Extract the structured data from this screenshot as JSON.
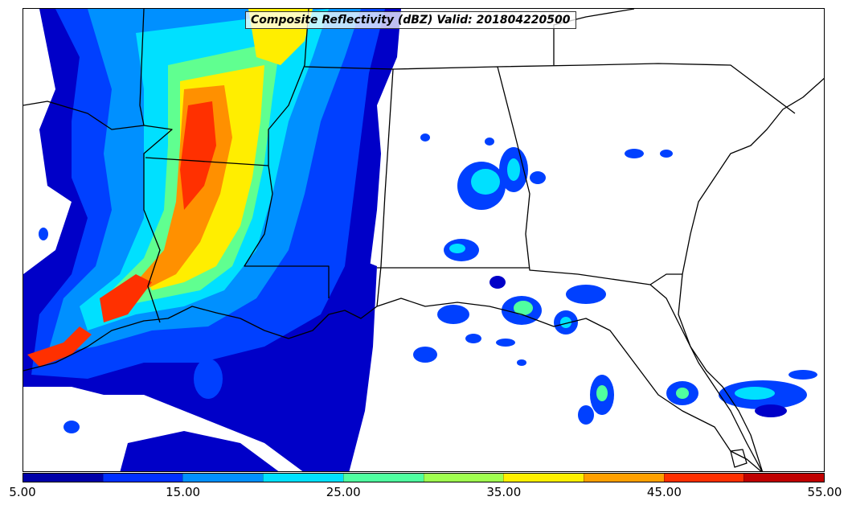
{
  "title": "Composite Reflectivity (dBZ) Valid: 201804220500",
  "colorbar": {
    "colors": [
      "#0000a8",
      "#0030ff",
      "#0090ff",
      "#00e0ff",
      "#50ffa0",
      "#a0ff50",
      "#fff000",
      "#ffa000",
      "#ff3000",
      "#c00000"
    ],
    "tick_labels": [
      "5.00",
      "15.00",
      "25.00",
      "35.00",
      "45.00",
      "55.00"
    ]
  },
  "icons": {
    "map": "radar-map"
  }
}
